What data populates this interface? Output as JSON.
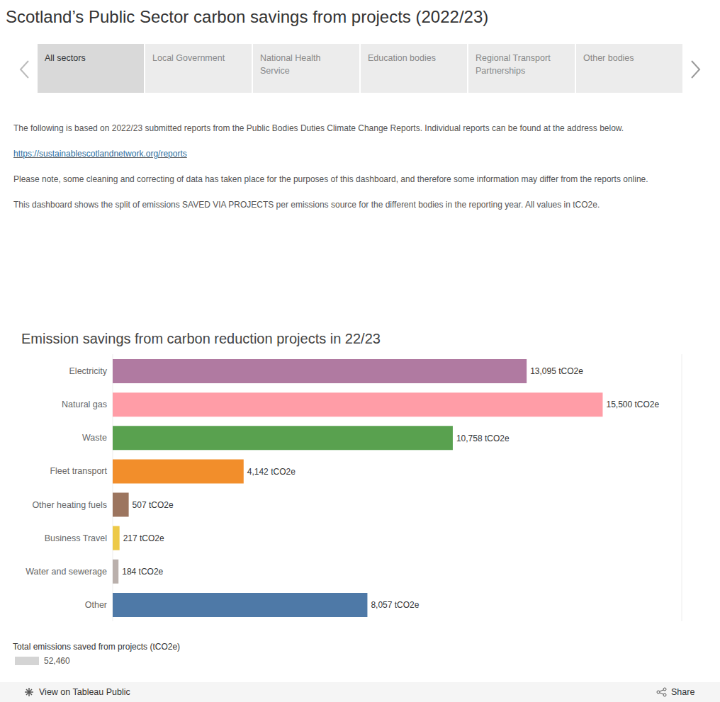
{
  "header": {
    "title": "Scotland’s Public Sector carbon savings from projects (2022/23)",
    "tabs": [
      "All sectors",
      "Local Government",
      "National Health Service",
      "Education bodies",
      "Regional Transport Partnerships",
      "Other bodies"
    ],
    "selected_tab": "All sectors",
    "paragraphs": [
      "The following is based on 2022/23 submitted reports from the Public Bodies Duties Climate Change Reports. Individual reports can be found at the address below.",
      "https://sustainablescotlandnetwork.org/reports",
      "Please note, some cleaning and correcting of data has taken place for the purposes of this dashboard, and therefore some information may differ from the reports online.",
      "This dashboard shows the split of emissions SAVED VIA PROJECTS per emissions source for the different bodies in the reporting year. All values in tCO2e."
    ],
    "link": "https://sustainablescotlandnetwork.org/reports"
  },
  "chart_data": {
    "type": "bar",
    "title": "Emission savings from carbon reduction projects in 22/23",
    "orientation": "horizontal",
    "categories": [
      "Electricity",
      "Natural gas",
      "Waste",
      "Fleet transport",
      "Other heating fuels",
      "Business Travel",
      "Water and sewerage",
      "Other"
    ],
    "values": [
      13095,
      15500,
      10758,
      4142,
      507,
      217,
      184,
      8057
    ],
    "value_labels": [
      "13,095 tCO2e",
      "15,500 tCO2e",
      "10,758 tCO2e",
      "4,142 tCO2e",
      "507 tCO2e",
      "217 tCO2e",
      "184 tCO2e",
      "8,057 tCO2e"
    ],
    "colors": [
      "#b07aa1",
      "#ff9da7",
      "#59a14f",
      "#f28e2b",
      "#9c755f",
      "#edc948",
      "#bab0ac",
      "#4e79a7"
    ],
    "xlim": [
      0,
      18000
    ],
    "xticks": [
      0,
      2000,
      4000,
      6000,
      8000,
      10000,
      12000,
      14000,
      16000,
      18000
    ],
    "grid": true,
    "data_labels": true,
    "tick_labels": "y"
  },
  "total": {
    "label": "Total emissions saved from projects (tCO2e)",
    "value": "52,460"
  },
  "toolbar": {
    "left": "View on Tableau Public",
    "right": "Share"
  }
}
